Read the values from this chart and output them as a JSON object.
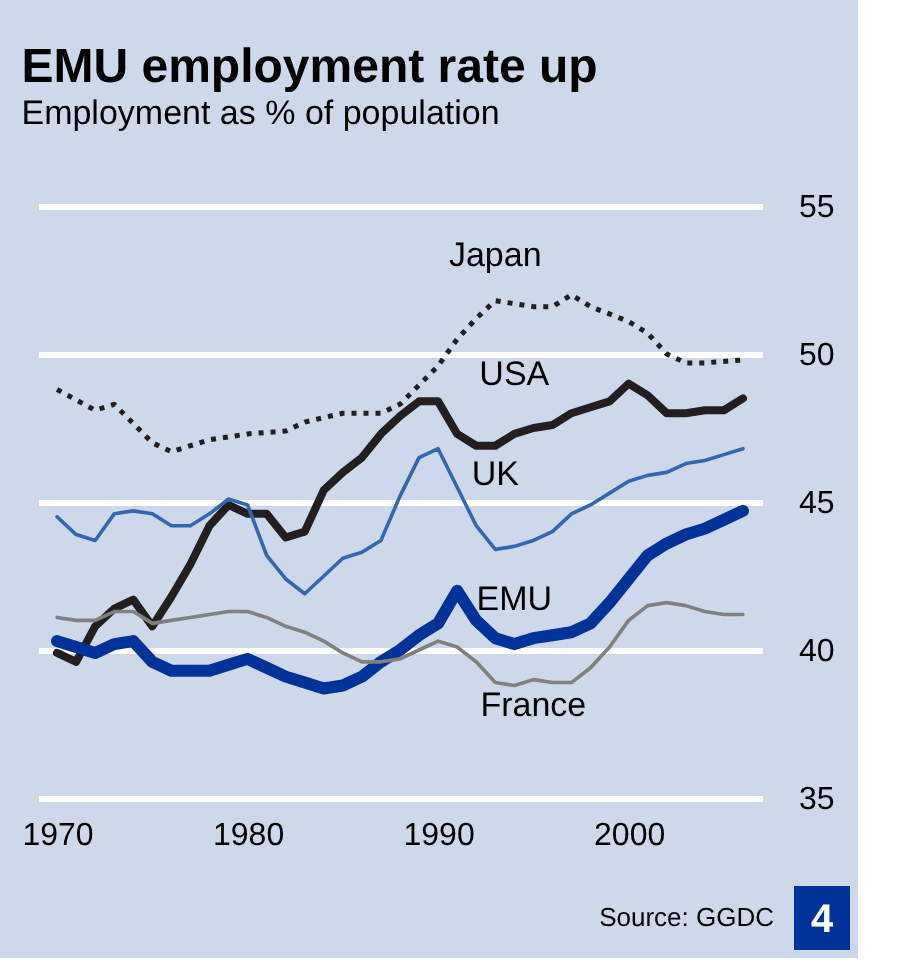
{
  "chart_data": {
    "type": "line",
    "title": "EMU employment rate up",
    "subtitle": "Employment as % of population",
    "x": [
      1970,
      1971,
      1972,
      1973,
      1974,
      1975,
      1976,
      1977,
      1978,
      1979,
      1980,
      1981,
      1982,
      1983,
      1984,
      1985,
      1986,
      1987,
      1988,
      1989,
      1990,
      1991,
      1992,
      1993,
      1994,
      1995,
      1996,
      1997,
      1998,
      1999,
      2000,
      2001,
      2002,
      2003,
      2004,
      2005,
      2006
    ],
    "series": [
      {
        "name": "Japan",
        "color": "#231f20",
        "line_style": "dotted",
        "x": [
          1970,
          1972,
          1973,
          1975,
          1976,
          1978,
          1980,
          1982,
          1983,
          1985,
          1987,
          1988,
          1990,
          1991,
          1992,
          1993,
          1995,
          1996,
          1997,
          1998,
          2000,
          2001,
          2002,
          2003,
          2004,
          2006
        ],
        "values": [
          48.8,
          48.1,
          48.3,
          47.0,
          46.7,
          47.1,
          47.3,
          47.4,
          47.7,
          48.0,
          48.0,
          48.3,
          49.6,
          50.5,
          51.2,
          51.8,
          51.6,
          51.6,
          52.0,
          51.6,
          51.1,
          50.7,
          50.0,
          49.7,
          49.7,
          49.8
        ]
      },
      {
        "name": "USA",
        "color": "#231f20",
        "line_style": "solid",
        "values": [
          39.9,
          39.6,
          40.8,
          41.4,
          41.7,
          40.8,
          41.8,
          42.9,
          44.2,
          44.9,
          44.6,
          44.6,
          43.8,
          44.0,
          45.4,
          46.0,
          46.5,
          47.3,
          47.9,
          48.4,
          48.4,
          47.3,
          46.9,
          46.9,
          47.3,
          47.5,
          47.6,
          48.0,
          48.2,
          48.4,
          49.0,
          48.6,
          48.0,
          48.0,
          48.1,
          48.1,
          48.5
        ]
      },
      {
        "name": "UK",
        "color": "#3366b3",
        "line_style": "solid",
        "values": [
          44.5,
          43.9,
          43.7,
          44.6,
          44.7,
          44.6,
          44.2,
          44.2,
          44.6,
          45.1,
          44.9,
          43.2,
          42.4,
          41.9,
          42.5,
          43.1,
          43.3,
          43.7,
          45.2,
          46.5,
          46.8,
          45.5,
          44.2,
          43.4,
          43.5,
          43.7,
          44.0,
          44.6,
          44.9,
          45.3,
          45.7,
          45.9,
          46.0,
          46.3,
          46.4,
          46.6,
          46.8
        ]
      },
      {
        "name": "EMU",
        "color": "#003399",
        "line_style": "solid",
        "values": [
          40.3,
          40.1,
          39.9,
          40.2,
          40.3,
          39.6,
          39.3,
          39.3,
          39.3,
          39.5,
          39.7,
          39.4,
          39.1,
          38.9,
          38.7,
          38.8,
          39.1,
          39.6,
          40.0,
          40.5,
          40.9,
          42.0,
          41.0,
          40.4,
          40.2,
          40.4,
          40.5,
          40.6,
          40.9,
          41.6,
          42.4,
          43.2,
          43.6,
          43.9,
          44.1,
          44.4,
          44.7
        ]
      },
      {
        "name": "France",
        "color": "#808080",
        "line_style": "solid",
        "values": [
          41.1,
          41.0,
          41.0,
          41.3,
          41.3,
          40.9,
          41.0,
          41.1,
          41.2,
          41.3,
          41.3,
          41.1,
          40.8,
          40.6,
          40.3,
          39.9,
          39.6,
          39.6,
          39.7,
          40.0,
          40.3,
          40.1,
          39.6,
          38.9,
          38.8,
          39.0,
          38.9,
          38.9,
          39.4,
          40.1,
          41.0,
          41.5,
          41.6,
          41.5,
          41.3,
          41.2,
          41.2
        ]
      }
    ],
    "xlim": [
      1969,
      2007
    ],
    "xticks": [
      1970,
      1980,
      1990,
      2000
    ],
    "ylim": [
      35,
      55
    ],
    "yticks": [
      35,
      40,
      45,
      50,
      55
    ],
    "grid": "y",
    "marker": "none",
    "annotations": [
      "Source: GGDC",
      "4"
    ]
  }
}
